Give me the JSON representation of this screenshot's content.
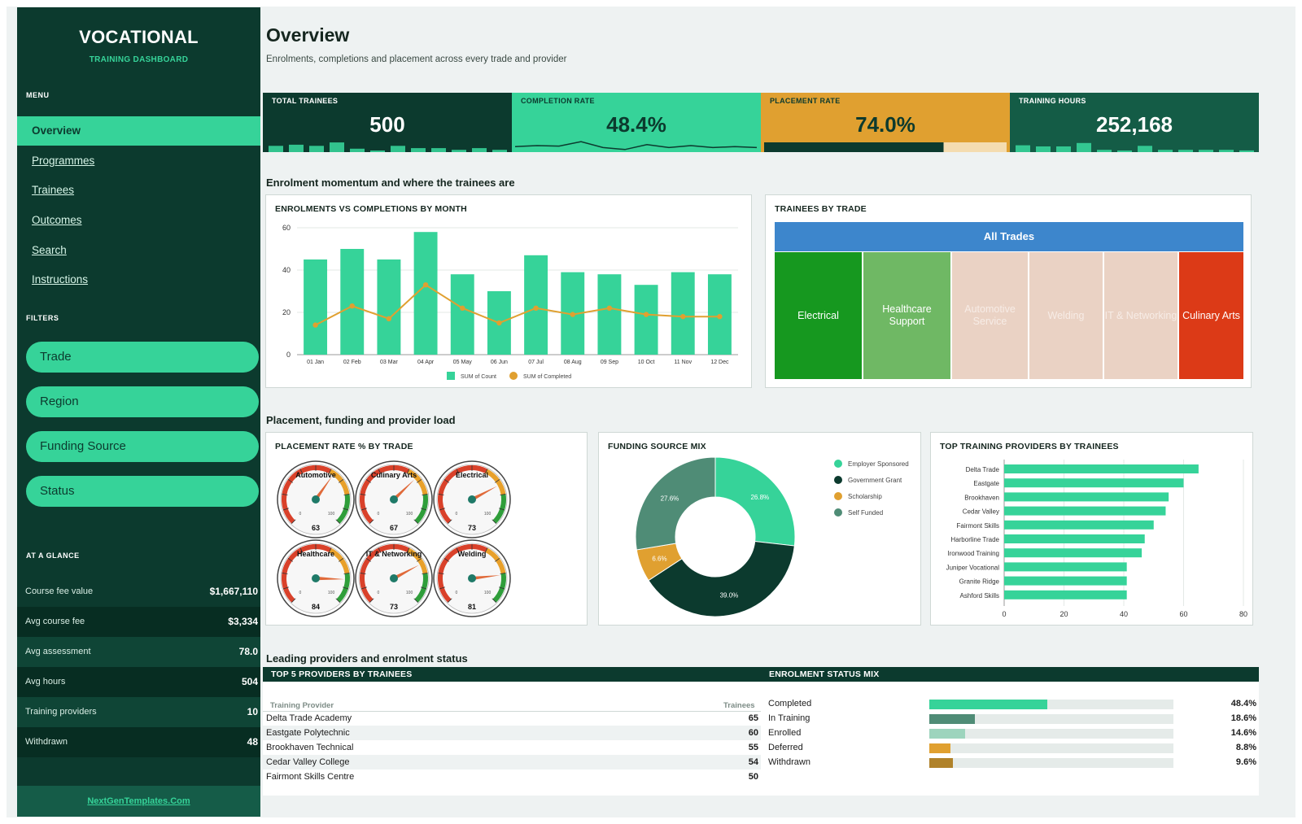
{
  "brand": {
    "title": "VOCATIONAL",
    "subtitle": "TRAINING DASHBOARD"
  },
  "menu": {
    "label": "MENU",
    "items": [
      {
        "label": "Overview"
      },
      {
        "label": "Programmes"
      },
      {
        "label": "Trainees"
      },
      {
        "label": "Outcomes"
      },
      {
        "label": "Search"
      },
      {
        "label": "Instructions"
      }
    ],
    "active": "Overview"
  },
  "filters": {
    "label": "FILTERS",
    "items": [
      "Trade",
      "Region",
      "Funding Source",
      "Status"
    ]
  },
  "glance": {
    "label": "AT A GLANCE",
    "rows": [
      {
        "name": "Course fee value",
        "value": "$1,667,110"
      },
      {
        "name": "Avg course fee",
        "value": "$3,334"
      },
      {
        "name": "Avg assessment",
        "value": "78.0"
      },
      {
        "name": "Avg hours",
        "value": "504"
      },
      {
        "name": "Training providers",
        "value": "10"
      },
      {
        "name": "Withdrawn",
        "value": "48"
      }
    ]
  },
  "footer": {
    "link": "NextGenTemplates.Com"
  },
  "header": {
    "title": "Overview",
    "subtitle": "Enrolments, completions and placement across every trade and provider"
  },
  "kpis": [
    {
      "label": "TOTAL TRAINEES",
      "value": "500",
      "color": "#0c3a2e",
      "text": "#ffffff",
      "spark": [
        0.55,
        0.65,
        0.55,
        0.85,
        0.3,
        0.1,
        0.55,
        0.35,
        0.35,
        0.2,
        0.35,
        0.2
      ]
    },
    {
      "label": "COMPLETION RATE",
      "value": "48.4%",
      "color": "#36d399",
      "text": "#0c3a2e",
      "spark": [
        0.4,
        0.5,
        0.45,
        0.9,
        0.3,
        0.1,
        0.6,
        0.3,
        0.5,
        0.3,
        0.4,
        0.3
      ]
    },
    {
      "label": "PLACEMENT RATE",
      "value": "74.0%",
      "color": "#e0a030",
      "text": "#0c3a2e",
      "progress": 0.74
    },
    {
      "label": "TRAINING HOURS",
      "value": "252,168",
      "color": "#145c46",
      "text": "#ffffff",
      "spark": [
        0.6,
        0.5,
        0.5,
        0.8,
        0.2,
        0.1,
        0.55,
        0.2,
        0.2,
        0.2,
        0.2,
        0.15
      ]
    }
  ],
  "sections": {
    "enrolment": "Enrolment momentum and where the trainees are",
    "placement": "Placement, funding and provider load",
    "leading": "Leading providers and enrolment status"
  },
  "chart_data": [
    {
      "id": "enrol_vs_completions",
      "type": "bar",
      "title": "ENROLMENTS VS COMPLETIONS BY MONTH",
      "categories": [
        "01 Jan",
        "02 Feb",
        "03 Mar",
        "04 Apr",
        "05 May",
        "06 Jun",
        "07 Jul",
        "08 Aug",
        "09 Sep",
        "10 Oct",
        "11 Nov",
        "12 Dec"
      ],
      "series": [
        {
          "name": "SUM of Count",
          "type": "bar",
          "color": "#36d399",
          "values": [
            45,
            50,
            45,
            58,
            38,
            30,
            47,
            39,
            38,
            33,
            39,
            38
          ]
        },
        {
          "name": "SUM of Completed",
          "type": "line",
          "color": "#e0a030",
          "values": [
            14,
            23,
            17,
            33,
            22,
            15,
            22,
            19,
            22,
            19,
            18,
            18
          ]
        }
      ],
      "ylim": [
        0,
        60
      ],
      "yticks": [
        0,
        20,
        40,
        60
      ],
      "legend": "bottom"
    },
    {
      "id": "trainees_by_trade",
      "type": "treemap",
      "title": "TRAINEES BY TRADE",
      "root": "All Trades",
      "cells": [
        {
          "label": "Electrical",
          "color": "#16981f",
          "text": "#ffffff",
          "weight": 0.19
        },
        {
          "label": "Healthcare Support",
          "color": "#6fb864",
          "text": "#ffffff",
          "weight": 0.19
        },
        {
          "label": "Automotive Service",
          "color": "#ead2c4",
          "text": "#f7ece6",
          "weight": 0.165
        },
        {
          "label": "Welding",
          "color": "#ead2c4",
          "text": "#f7ece6",
          "weight": 0.16
        },
        {
          "label": "IT & Networking",
          "color": "#ead2c4",
          "text": "#f7ece6",
          "weight": 0.16
        },
        {
          "label": "Culinary Arts",
          "color": "#dc3a17",
          "text": "#ffffff",
          "weight": 0.11
        }
      ]
    },
    {
      "id": "placement_gauges",
      "type": "gauge",
      "title": "PLACEMENT RATE % BY TRADE",
      "min_label": "0",
      "max_label": "100",
      "gauges": [
        {
          "label": "Automotive",
          "value": 63
        },
        {
          "label": "Culinary Arts",
          "value": 67
        },
        {
          "label": "Electrical",
          "value": 73
        },
        {
          "label": "Healthcare",
          "value": 84
        },
        {
          "label": "IT & Networking",
          "value": 73
        },
        {
          "label": "Welding",
          "value": 81
        }
      ]
    },
    {
      "id": "funding_mix",
      "type": "pie",
      "title": "FUNDING SOURCE MIX",
      "slices": [
        {
          "name": "Employer Sponsored",
          "value": 26.8,
          "label": "26.8%",
          "color": "#36d399"
        },
        {
          "name": "Government Grant",
          "value": 39.0,
          "label": "39.0%",
          "color": "#0c3a2e"
        },
        {
          "name": "Scholarship",
          "value": 6.6,
          "label": "6.6%",
          "color": "#e0a030"
        },
        {
          "name": "Self Funded",
          "value": 27.6,
          "label": "27.6%",
          "color": "#4f8c76"
        }
      ],
      "legend": "right"
    },
    {
      "id": "top_providers",
      "type": "bar",
      "orientation": "horizontal",
      "title": "TOP TRAINING PROVIDERS BY TRAINEES",
      "categories": [
        "Delta Trade",
        "Eastgate",
        "Brookhaven",
        "Cedar Valley",
        "Fairmont Skills",
        "Harborline Trade",
        "Ironwood Training",
        "Juniper Vocational",
        "Granite Ridge",
        "Ashford Skills"
      ],
      "values": [
        65,
        60,
        55,
        54,
        50,
        47,
        46,
        41,
        41,
        41
      ],
      "color": "#36d399",
      "xlim": [
        0,
        80
      ],
      "xticks": [
        0,
        20,
        40,
        60,
        80
      ]
    }
  ],
  "top5": {
    "title": "TOP 5 PROVIDERS BY TRAINEES",
    "col_provider": "Training Provider",
    "col_trainees": "Trainees",
    "rows": [
      {
        "name": "Delta Trade Academy",
        "count": "65"
      },
      {
        "name": "Eastgate Polytechnic",
        "count": "60"
      },
      {
        "name": "Brookhaven Technical",
        "count": "55"
      },
      {
        "name": "Cedar Valley College",
        "count": "54"
      },
      {
        "name": "Fairmont Skills Centre",
        "count": "50"
      }
    ]
  },
  "status_mix": {
    "title": "ENROLMENT STATUS MIX",
    "rows": [
      {
        "name": "Completed",
        "pct": "48.4%",
        "value": 48.4,
        "color": "#36d399"
      },
      {
        "name": "In Training",
        "pct": "18.6%",
        "value": 18.6,
        "color": "#4f8c76"
      },
      {
        "name": "Enrolled",
        "pct": "14.6%",
        "value": 14.6,
        "color": "#9dd4bd"
      },
      {
        "name": "Deferred",
        "pct": "8.8%",
        "value": 8.8,
        "color": "#e0a030"
      },
      {
        "name": "Withdrawn",
        "pct": "9.6%",
        "value": 9.6,
        "color": "#b0822a"
      }
    ]
  }
}
